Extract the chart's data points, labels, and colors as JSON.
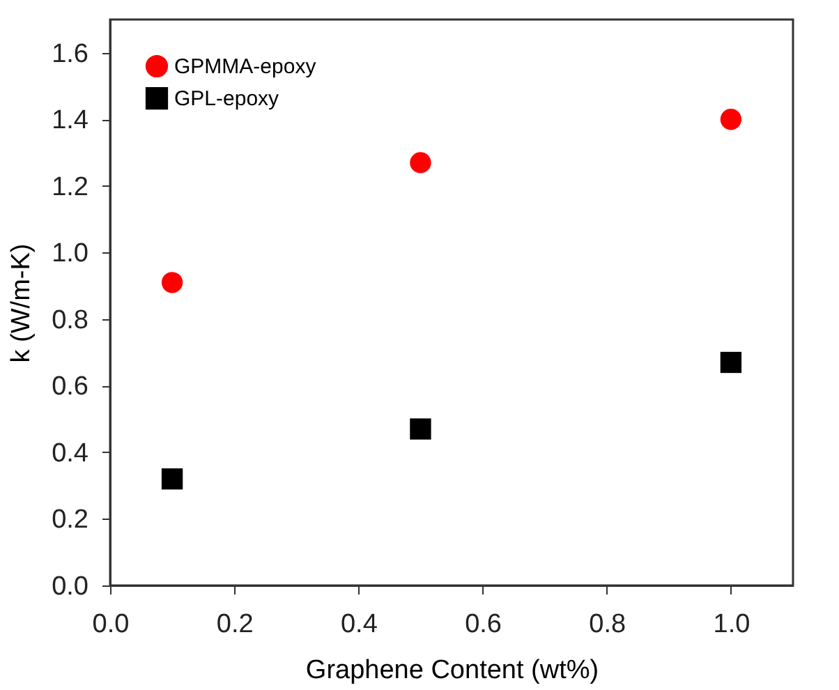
{
  "chart_data": {
    "type": "scatter",
    "xlabel": "Graphene Content (wt%)",
    "ylabel": "k (W/m-K)",
    "x": [
      0.1,
      0.5,
      1.0
    ],
    "series": [
      {
        "name": "GPMMA-epoxy",
        "color": "#ff0000",
        "marker": "circle",
        "values": [
          0.91,
          1.27,
          1.4
        ]
      },
      {
        "name": "GPL-epoxy",
        "color": "#000000",
        "marker": "square",
        "values": [
          0.32,
          0.47,
          0.67
        ]
      }
    ],
    "xlim": [
      0,
      1.1
    ],
    "xticks": [
      {
        "value": 0,
        "label": "0.0"
      },
      0.2,
      0.4,
      0.6,
      0.8,
      {
        "value": 1,
        "label": "1.0"
      }
    ],
    "ylim": [
      0,
      1.7
    ],
    "yticks": [
      {
        "value": 0,
        "label": "0.0"
      },
      0.2,
      0.4,
      0.6,
      0.8,
      {
        "value": 1,
        "label": "1.0"
      },
      1.2,
      1.4,
      1.6
    ],
    "legend": "top left",
    "grid": false
  }
}
